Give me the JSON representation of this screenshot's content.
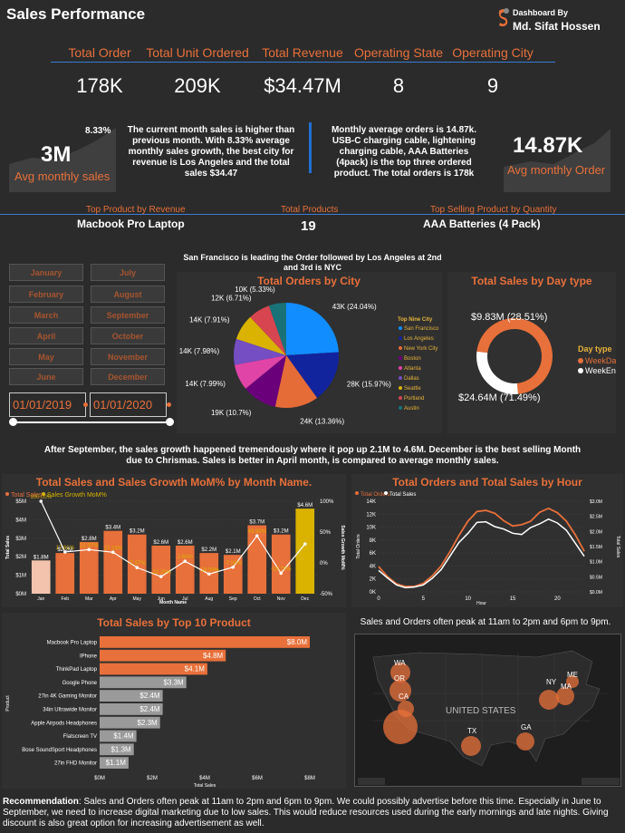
{
  "header": {
    "title": "Sales Performance",
    "author_label": "Dashboard By",
    "author_name": "Md. Sifat Hossen"
  },
  "kpis": [
    {
      "label": "Total Order",
      "value": "178K"
    },
    {
      "label": "Total Unit Ordered",
      "value": "209K"
    },
    {
      "label": "Total Revenue",
      "value": "$34.47M"
    },
    {
      "label": "Operating State",
      "value": "8"
    },
    {
      "label": "Operating City",
      "value": "9"
    }
  ],
  "avg_sales": {
    "value": "3M",
    "label": "Avg monthly sales",
    "growth": "8.33%"
  },
  "avg_orders": {
    "value": "14.87K",
    "label": "Avg monthly Order"
  },
  "notes": {
    "sales": "The current month sales is higher than previous month. With 8.33% average monthly sales growth, the best city for revenue is Los Angeles and the total sales $34.47",
    "orders": "Monthly average orders is 14.87k. USB-C charging cable, lightening charging cable, AAA Batteries (4pack) is the top three ordered product. The total orders is 178k",
    "city": "San Francisco is leading the Order followed by Los Angeles at 2nd and 3rd is NYC",
    "growth": "After September, the sales growth happened tremendously where it pop up 2.1M to 4.6M. December is the best selling Month due to Chrismas. Sales is better in April month, is compared to average monthly sales.",
    "peak": "Sales and Orders often peak at 11am to 2pm and 6pm to 9pm.",
    "rec_label": "Recommendation",
    "rec_text": ": Sales and Orders often peak at 11am to 2pm and 6pm to 9pm. We could possibly advertise before this time. Especially in June to September, we need to increase digital marketing due to low sales. This would reduce resources used during the early mornings and late nights. Giving discount is also great option for increasing advertisement as well."
  },
  "top_row": [
    {
      "label": "Top Product by Revenue",
      "value": "Macbook Pro Laptop"
    },
    {
      "label": "Total Products",
      "value": "19"
    },
    {
      "label": "Top Selling Product by Quantity",
      "value": "AAA Batteries (4 Pack)"
    }
  ],
  "slicer": {
    "months": [
      "January",
      "July",
      "February",
      "August",
      "March",
      "September",
      "April",
      "October",
      "May",
      "November",
      "June",
      "December"
    ],
    "start_date": "01/01/2019",
    "end_date": "01/01/2020"
  },
  "map": {
    "country_label": "UNITED STATES",
    "states": [
      "WA",
      "OR",
      "CA",
      "TX",
      "GA",
      "NY",
      "MA",
      "ME"
    ]
  },
  "chart_data": [
    {
      "type": "pie",
      "title": "Total Orders by City",
      "legend_title": "Top Nine City",
      "categories": [
        "San Francisco",
        "Los Angeles",
        "New York City",
        "Boston",
        "Atlanta",
        "Dallas",
        "Seattle",
        "Portland",
        "Austin"
      ],
      "values": [
        24.04,
        15.97,
        13.36,
        10.7,
        7.99,
        7.98,
        7.91,
        6.71,
        5.33
      ],
      "labels": [
        "43K (24.04%)",
        "28K (15.97%)",
        "24K (13.36%)",
        "19K (10.7%)",
        "14K (7.99%)",
        "14K (7.98%)",
        "14K (7.91%)",
        "12K (6.71%)",
        "10K (5.33%)"
      ],
      "colors": [
        "#118dff",
        "#12239e",
        "#e66c37",
        "#6b007b",
        "#e044a7",
        "#744ec2",
        "#d9b300",
        "#d64550",
        "#197278"
      ]
    },
    {
      "type": "pie",
      "title": "Total Sales by Day type",
      "legend_title": "Day type",
      "categories": [
        "WeekDay",
        "WeekEnd"
      ],
      "values": [
        71.49,
        28.51
      ],
      "labels": [
        "$24.64M (71.49%)",
        "$9.83M (28.51%)"
      ],
      "colors": [
        "#e8703a",
        "#ffffff"
      ]
    },
    {
      "type": "bar",
      "title": "Total Sales and Sales Growth MoM% by Month Name.",
      "legend": [
        "Total Sales",
        "Sales Growth MoM%"
      ],
      "categories": [
        "Jan",
        "Feb",
        "Mar",
        "Apr",
        "May",
        "Jun",
        "Jul",
        "Aug",
        "Sep",
        "Oct",
        "Nov",
        "Dec"
      ],
      "series": [
        {
          "name": "Total Sales",
          "values": [
            1.8,
            2.2,
            2.8,
            3.4,
            3.2,
            2.6,
            2.6,
            2.2,
            2.1,
            3.7,
            3.2,
            4.6
          ],
          "labels": [
            "$1.8M",
            "$2.2M",
            "$2.8M",
            "$3.4M",
            "$3.2M",
            "$2.6M",
            "$2.6M",
            "$2.2M",
            "$2.1M",
            "$3.7M",
            "$3.2M",
            "$4.6M"
          ]
        },
        {
          "name": "Sales Growth MoM%",
          "values": [
            100,
            17.61,
            21.57,
            17.24,
            -7.57,
            -22.29,
            2.65,
            -18.09,
            -7,
            43.92,
            -16.79,
            30.61
          ],
          "labels": [
            "100.00%",
            "17.61%",
            "21.57%",
            "17.24%",
            "-7.57%",
            "-22.29%",
            "2.65%",
            "-18.09%",
            "-7.00%",
            "43.92%",
            "-16.79%",
            "30.61%"
          ]
        }
      ],
      "ylabel": "Total Sales",
      "y2label": "Sales Growth MoM%",
      "xlabel": "Month Name",
      "yticks": [
        "$0M",
        "$1M",
        "$2M",
        "$3M",
        "$4M",
        "$5M"
      ],
      "y2ticks": [
        "-50%",
        "0%",
        "50%",
        "100%"
      ]
    },
    {
      "type": "line",
      "title": "Total Orders and Total Sales by Hour",
      "legend": [
        "Total Orders",
        "Total Sales"
      ],
      "x": [
        0,
        1,
        2,
        3,
        4,
        5,
        6,
        7,
        8,
        9,
        10,
        11,
        12,
        13,
        14,
        15,
        16,
        17,
        18,
        19,
        20,
        21,
        22,
        23
      ],
      "series": [
        {
          "name": "Total Orders",
          "values": [
            3.9,
            2.35,
            1.24,
            0.83,
            0.85,
            1.32,
            2.48,
            4.01,
            6.26,
            8.75,
            10.94,
            12.41,
            12.59,
            12.13,
            10.98,
            10.18,
            10.38,
            10.9,
            12.28,
            12.9,
            12.23,
            10.92,
            8.82,
            6.27
          ]
        },
        {
          "name": "Total Sales",
          "values": [
            0.71,
            0.46,
            0.23,
            0.14,
            0.16,
            0.23,
            0.45,
            0.74,
            1.19,
            1.64,
            1.94,
            2.3,
            2.32,
            2.16,
            2.08,
            1.94,
            1.9,
            2.13,
            2.25,
            2.41,
            2.28,
            2.04,
            1.61,
            1.18
          ]
        }
      ],
      "xlabel": "Hour",
      "ylabel": "Total Orders",
      "y2label": "Total Sales",
      "yticks": [
        "0K",
        "2K",
        "4K",
        "6K",
        "8K",
        "10K",
        "12K",
        "14K"
      ],
      "y2ticks": [
        "$0.0M",
        "$0.5M",
        "$1.0M",
        "$1.5M",
        "$2.0M",
        "$2.5M",
        "$3.0M"
      ],
      "xticks": [
        "0",
        "5",
        "10",
        "15",
        "20"
      ]
    },
    {
      "type": "bar",
      "orientation": "horizontal",
      "title": "Total Sales by Top 10 Product",
      "categories": [
        "Macbook Pro Laptop",
        "IPhone",
        "ThinkPad Laptop",
        "Google Phone",
        "27in 4K Gaming Monitor",
        "34in Ultrawide Monitor",
        "Apple Airpods Headphones",
        "Flatscreen TV",
        "Bose SoundSport Headphones",
        "27in FHD Monitor"
      ],
      "values": [
        8.0,
        4.8,
        4.1,
        3.3,
        2.4,
        2.4,
        2.3,
        1.4,
        1.3,
        1.1
      ],
      "labels": [
        "$8.0M",
        "$4.8M",
        "$4.1M",
        "$3.3M",
        "$2.4M",
        "$2.4M",
        "$2.3M",
        "$1.4M",
        "$1.3M",
        "$1.1M"
      ],
      "xticks": [
        "$0M",
        "$2M",
        "$4M",
        "$6M",
        "$8M"
      ],
      "xlabel": "Total Sales",
      "ylabel": "Product"
    }
  ]
}
